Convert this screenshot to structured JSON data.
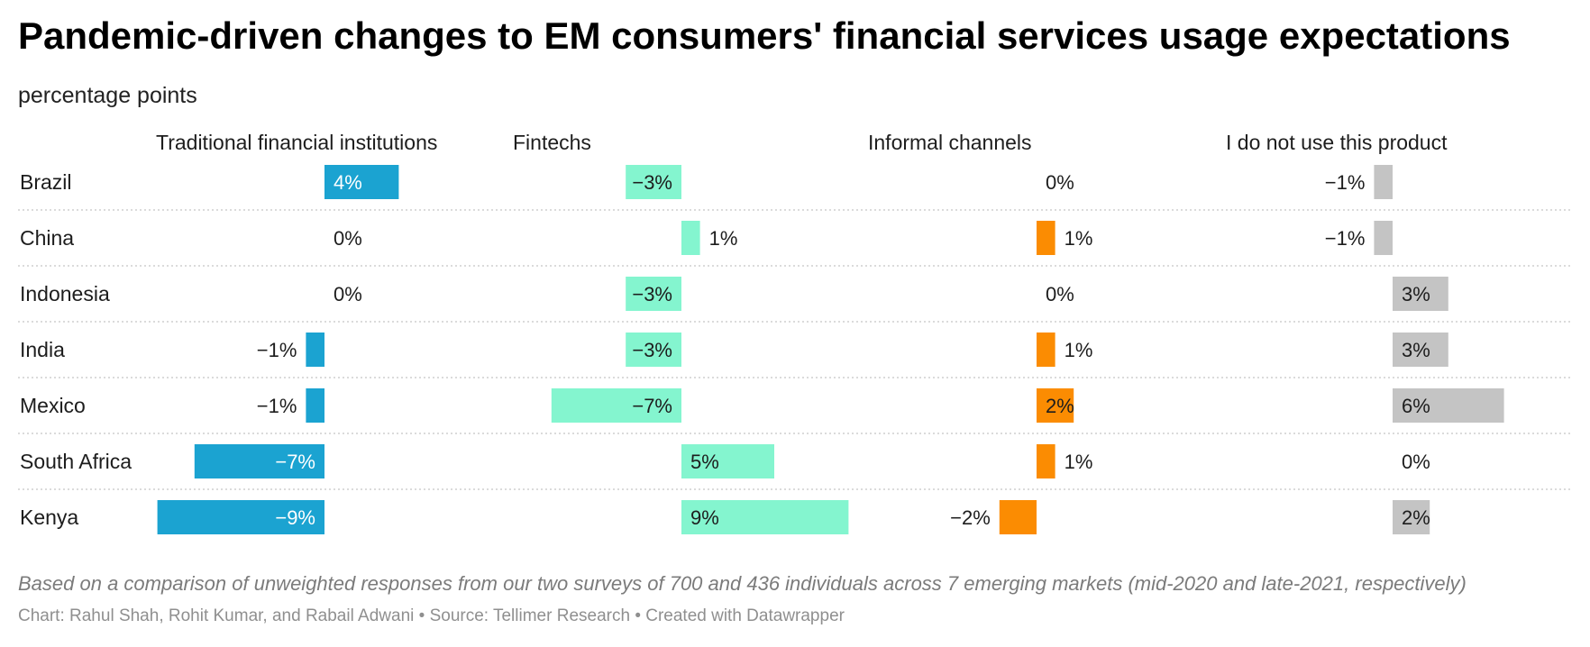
{
  "header": {
    "title": "Pandemic-driven changes to EM consumers' financial services usage expectations",
    "subtitle": "percentage points"
  },
  "footer": {
    "notes": "Based on a comparison of unweighted responses from our two surveys of 700 and 436 individuals across 7 emerging markets (mid-2020 and late-2021, respectively)",
    "credit": "Chart: Rahul Shah, Rohit Kumar, and Rabail Adwani • Source: Tellimer Research • Created with Datawrapper"
  },
  "chart_data": {
    "type": "bar",
    "orientation": "horizontal",
    "layout": "small-multiples",
    "title": "Pandemic-driven changes to EM consumers' financial services usage expectations",
    "subtitle": "percentage points",
    "unit": "%",
    "categories": [
      "Brazil",
      "China",
      "Indonesia",
      "India",
      "Mexico",
      "South Africa",
      "Kenya"
    ],
    "series": [
      {
        "name": "Traditional financial institutions",
        "color": "#1ba3d1",
        "values": [
          4,
          0,
          0,
          -1,
          -1,
          -7,
          -9
        ]
      },
      {
        "name": "Fintechs",
        "color": "#84f5cf",
        "values": [
          -3,
          1,
          -3,
          -3,
          -7,
          5,
          9
        ]
      },
      {
        "name": "Informal channels",
        "color": "#fb8c02",
        "values": [
          0,
          1,
          0,
          1,
          2,
          1,
          -2
        ]
      },
      {
        "name": "I do not use this product",
        "color": "#c4c4c4",
        "values": [
          -1,
          -1,
          3,
          3,
          6,
          0,
          2
        ]
      }
    ],
    "xlim": [
      -9,
      9
    ],
    "label_colors": {
      "inside_dark": "#ffffff",
      "inside_light": "#1d1d1d",
      "outside": "#1d1d1d"
    }
  }
}
